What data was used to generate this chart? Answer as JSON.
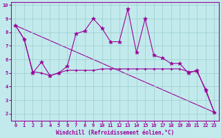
{
  "xlabel": "Windchill (Refroidissement éolien,°C)",
  "bg_color": "#c2eaec",
  "line_color": "#990099",
  "grid_color": "#99cccc",
  "xlim": [
    -0.5,
    23.5
  ],
  "ylim": [
    1.5,
    10.2
  ],
  "yticks": [
    2,
    3,
    4,
    5,
    6,
    7,
    8,
    9,
    10
  ],
  "xticks": [
    0,
    1,
    2,
    3,
    4,
    5,
    6,
    7,
    8,
    9,
    10,
    11,
    12,
    13,
    14,
    15,
    16,
    17,
    18,
    19,
    20,
    21,
    22,
    23
  ],
  "series1_x": [
    0,
    1,
    2,
    3,
    4,
    5,
    6,
    7,
    8,
    9,
    10,
    11,
    12,
    13,
    14,
    15,
    16,
    17,
    18,
    19,
    20,
    21,
    22,
    23
  ],
  "series1_y": [
    8.5,
    7.5,
    5.0,
    5.8,
    4.8,
    5.0,
    5.5,
    7.9,
    8.1,
    9.0,
    8.3,
    7.3,
    7.3,
    9.7,
    6.5,
    9.0,
    6.3,
    6.1,
    5.7,
    5.7,
    5.0,
    5.2,
    3.7,
    2.1
  ],
  "series2_x": [
    0,
    1,
    2,
    3,
    4,
    5,
    6,
    7,
    8,
    9,
    10,
    11,
    12,
    13,
    14,
    15,
    16,
    17,
    18,
    19,
    20,
    21,
    22,
    23
  ],
  "series2_y": [
    8.5,
    7.5,
    5.1,
    5.0,
    4.8,
    5.0,
    5.2,
    5.2,
    5.2,
    5.2,
    5.3,
    5.3,
    5.3,
    5.3,
    5.3,
    5.3,
    5.3,
    5.3,
    5.3,
    5.3,
    5.1,
    5.1,
    3.8,
    2.1
  ],
  "trend_x": [
    0,
    23
  ],
  "trend_y": [
    8.5,
    2.1
  ],
  "tick_fontsize": 5,
  "xlabel_fontsize": 5.5
}
